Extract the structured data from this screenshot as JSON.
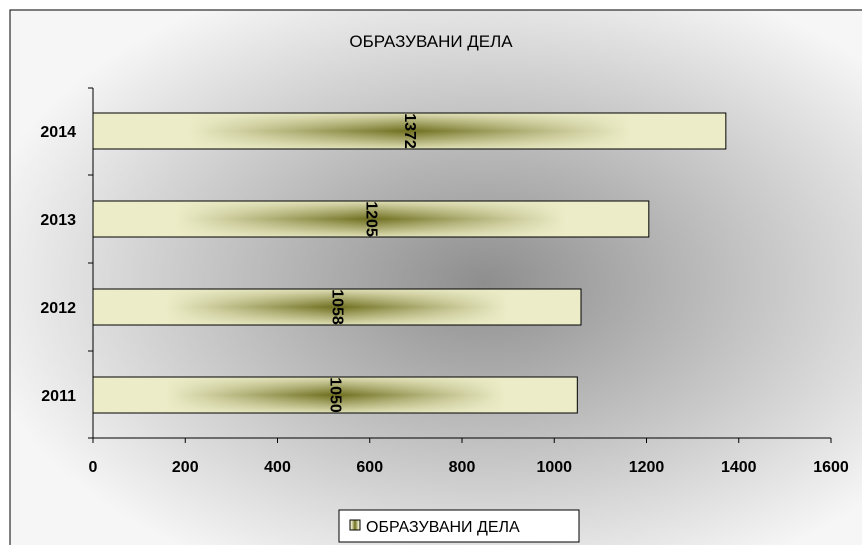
{
  "chart_data": {
    "type": "bar",
    "orientation": "horizontal",
    "title": "ОБРАЗУВАНИ ДЕЛА",
    "xlabel": "",
    "ylabel": "",
    "categories": [
      "2011",
      "2012",
      "2013",
      "2014"
    ],
    "series": [
      {
        "name": "ОБРАЗУВАНИ ДЕЛА",
        "values": [
          1050,
          1058,
          1205,
          1372
        ]
      }
    ],
    "xlim": [
      0,
      1600
    ],
    "xticks": [
      0,
      200,
      400,
      600,
      800,
      1000,
      1200,
      1400,
      1600
    ],
    "data_labels": [
      "1050",
      "1058",
      "1205",
      "1372"
    ],
    "data_label_rotation": "vertical",
    "grid": false,
    "legend_position": "bottom",
    "colors": {
      "bar_light": "#ECECC8",
      "bar_dark": "#6E6E1E",
      "bar_border": "#000000",
      "background_light": "#F6F6F6",
      "background_dark": "#8E8E8E",
      "axis": "#000000"
    }
  }
}
